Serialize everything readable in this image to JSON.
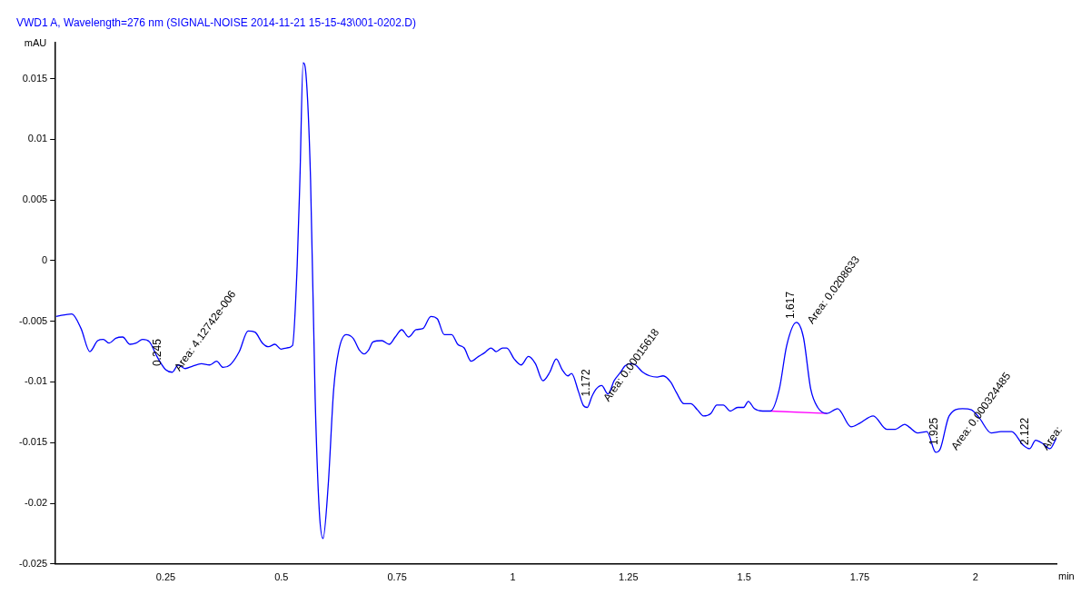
{
  "chart_data": {
    "type": "line",
    "title": "VWD1 A, Wavelength=276 nm (SIGNAL-NOISE 2014-11-21 15-15-43\\001-0202.D)",
    "xlabel": "min",
    "ylabel": "mAU",
    "legend": false,
    "marker": "none",
    "xlim": [
      0.012,
      2.175
    ],
    "xticks": [
      0.25,
      0.5,
      0.75,
      1,
      1.25,
      1.5,
      1.75,
      2
    ],
    "ylim": [
      -0.025,
      0.018
    ],
    "yticks": [
      -0.025,
      -0.02,
      -0.015,
      -0.01,
      -0.005,
      0,
      0.005,
      0.01,
      0.015
    ],
    "series": [
      {
        "color": "#0000ff",
        "x": [
          0.013,
          0.047,
          0.067,
          0.086,
          0.103,
          0.115,
          0.128,
          0.142,
          0.157,
          0.173,
          0.186,
          0.2,
          0.215,
          0.231,
          0.25,
          0.264,
          0.277,
          0.292,
          0.308,
          0.327,
          0.345,
          0.36,
          0.374,
          0.389,
          0.409,
          0.428,
          0.443,
          0.459,
          0.472,
          0.486,
          0.499,
          0.511,
          0.524,
          0.534,
          0.54,
          0.547,
          0.553,
          0.563,
          0.573,
          0.582,
          0.59,
          0.601,
          0.613,
          0.624,
          0.64,
          0.655,
          0.669,
          0.679,
          0.688,
          0.698,
          0.717,
          0.733,
          0.746,
          0.76,
          0.775,
          0.791,
          0.806,
          0.823,
          0.837,
          0.852,
          0.868,
          0.881,
          0.895,
          0.91,
          0.926,
          0.939,
          0.953,
          0.964,
          0.978,
          0.987,
          1.003,
          1.018,
          1.034,
          1.049,
          1.065,
          1.08,
          1.094,
          1.107,
          1.119,
          1.127,
          1.142,
          1.152,
          1.161,
          1.171,
          1.18,
          1.192,
          1.206,
          1.219,
          1.233,
          1.242,
          1.254,
          1.265,
          1.281,
          1.296,
          1.312,
          1.325,
          1.341,
          1.354,
          1.37,
          1.385,
          1.399,
          1.412,
          1.428,
          1.441,
          1.455,
          1.47,
          1.486,
          1.499,
          1.509,
          1.522,
          1.54,
          1.557,
          1.576,
          1.592,
          1.613,
          1.628,
          1.644,
          1.659,
          1.679,
          1.702,
          1.731,
          1.75,
          1.779,
          1.808,
          1.827,
          1.847,
          1.856,
          1.875,
          1.895,
          1.914,
          1.924,
          1.943,
          1.972,
          1.991,
          2.007,
          2.034,
          2.055,
          2.078,
          2.103,
          2.117,
          2.13,
          2.146,
          2.161,
          2.175
        ],
        "values": [
          -0.0046,
          -0.0044,
          -0.0056,
          -0.0075,
          -0.0066,
          -0.0065,
          -0.0068,
          -0.0064,
          -0.0063,
          -0.0069,
          -0.0068,
          -0.0065,
          -0.0067,
          -0.0079,
          -0.009,
          -0.0092,
          -0.0086,
          -0.0089,
          -0.0087,
          -0.0085,
          -0.0086,
          -0.0083,
          -0.0088,
          -0.0086,
          -0.0075,
          -0.0058,
          -0.0059,
          -0.0068,
          -0.0071,
          -0.0069,
          -0.0073,
          -0.0072,
          -0.007,
          -0.0005,
          0.0067,
          0.0163,
          0.0154,
          0.0067,
          -0.0114,
          -0.0207,
          -0.0229,
          -0.0186,
          -0.0106,
          -0.0074,
          -0.0061,
          -0.0064,
          -0.0074,
          -0.0077,
          -0.0074,
          -0.0067,
          -0.0066,
          -0.0069,
          -0.0063,
          -0.0057,
          -0.0063,
          -0.0057,
          -0.0056,
          -0.0046,
          -0.0048,
          -0.0061,
          -0.0061,
          -0.0069,
          -0.0072,
          -0.0083,
          -0.0079,
          -0.0076,
          -0.0072,
          -0.0075,
          -0.0072,
          -0.0072,
          -0.0081,
          -0.0086,
          -0.0079,
          -0.0085,
          -0.0099,
          -0.0092,
          -0.0081,
          -0.009,
          -0.0095,
          -0.0093,
          -0.0108,
          -0.0119,
          -0.0121,
          -0.0112,
          -0.0106,
          -0.0103,
          -0.011,
          -0.0099,
          -0.0092,
          -0.0087,
          -0.0085,
          -0.0086,
          -0.0092,
          -0.0095,
          -0.0096,
          -0.0095,
          -0.01,
          -0.0109,
          -0.0118,
          -0.0118,
          -0.0123,
          -0.0128,
          -0.0126,
          -0.0119,
          -0.0119,
          -0.0124,
          -0.0121,
          -0.0121,
          -0.0116,
          -0.0122,
          -0.0124,
          -0.0124,
          -0.0106,
          -0.007,
          -0.0051,
          -0.0063,
          -0.0106,
          -0.0121,
          -0.0126,
          -0.0122,
          -0.0137,
          -0.0134,
          -0.0128,
          -0.0139,
          -0.0139,
          -0.0135,
          -0.0137,
          -0.0142,
          -0.0141,
          -0.0158,
          -0.0155,
          -0.0128,
          -0.0122,
          -0.0123,
          -0.0129,
          -0.0142,
          -0.0141,
          -0.0141,
          -0.0152,
          -0.0155,
          -0.0148,
          -0.0151,
          -0.0155,
          -0.0146
        ]
      },
      {
        "color": "#ff00ff",
        "x": [
          1.557,
          1.679
        ],
        "values": [
          -0.0124,
          -0.0126
        ]
      }
    ],
    "annotations": [
      {
        "text": "0.245",
        "x": 0.245,
        "y": -0.009
      },
      {
        "text": "Area: 4.12742e-006",
        "x": 0.245,
        "y": -0.009
      },
      {
        "text": "1.172",
        "x": 1.172,
        "y": -0.0115
      },
      {
        "text": "Area: 0.00015618",
        "x": 1.172,
        "y": -0.0115
      },
      {
        "text": "1.617",
        "x": 1.613,
        "y": -0.0051
      },
      {
        "text": "Area: 0.0208633",
        "x": 1.613,
        "y": -0.0051
      },
      {
        "text": "1.925",
        "x": 1.924,
        "y": -0.0155
      },
      {
        "text": "Area: 0.000324485",
        "x": 1.924,
        "y": -0.0155
      },
      {
        "text": "2.122",
        "x": 2.12,
        "y": -0.0155
      },
      {
        "text": "Area:",
        "x": 2.12,
        "y": -0.0155
      }
    ]
  }
}
